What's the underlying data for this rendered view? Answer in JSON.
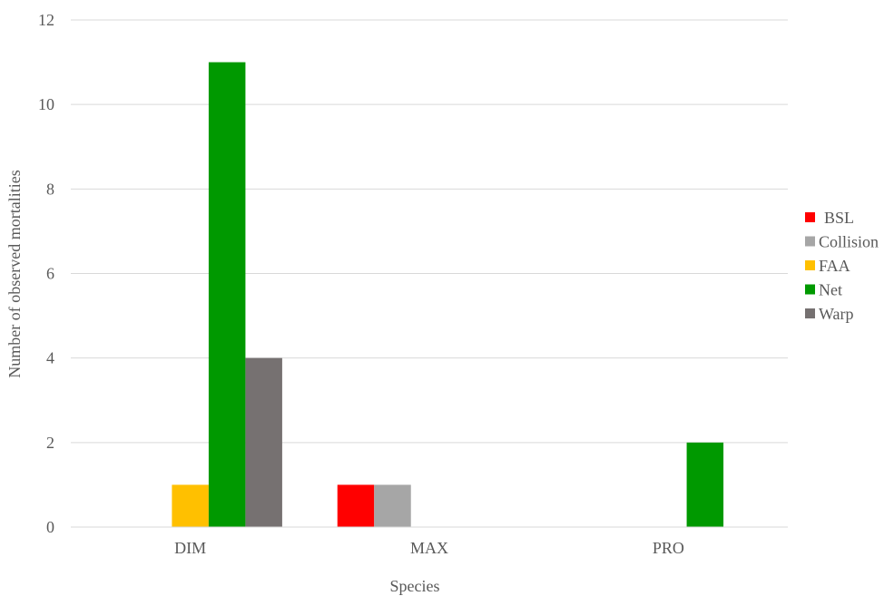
{
  "chart_data": {
    "type": "bar",
    "title": "",
    "xlabel": "Species",
    "ylabel": "Number of observed mortalities",
    "categories": [
      "DIM",
      "MAX",
      "PRO"
    ],
    "ylim": [
      0,
      12
    ],
    "yticks": [
      "0",
      "2",
      "4",
      "6",
      "8",
      "10",
      "12"
    ],
    "grid": true,
    "legend_position": "right",
    "series": [
      {
        "name": "BSL",
        "color": "#ff0000",
        "values": [
          0,
          1,
          0
        ]
      },
      {
        "name": "Collision",
        "color": "#a6a6a6",
        "values": [
          0,
          1,
          0
        ]
      },
      {
        "name": "FAA",
        "color": "#ffc000",
        "values": [
          1,
          0,
          0
        ]
      },
      {
        "name": "Net",
        "color": "#009900",
        "values": [
          11,
          0,
          2
        ]
      },
      {
        "name": "Warp",
        "color": "#767171",
        "values": [
          4,
          0,
          0
        ]
      }
    ]
  }
}
